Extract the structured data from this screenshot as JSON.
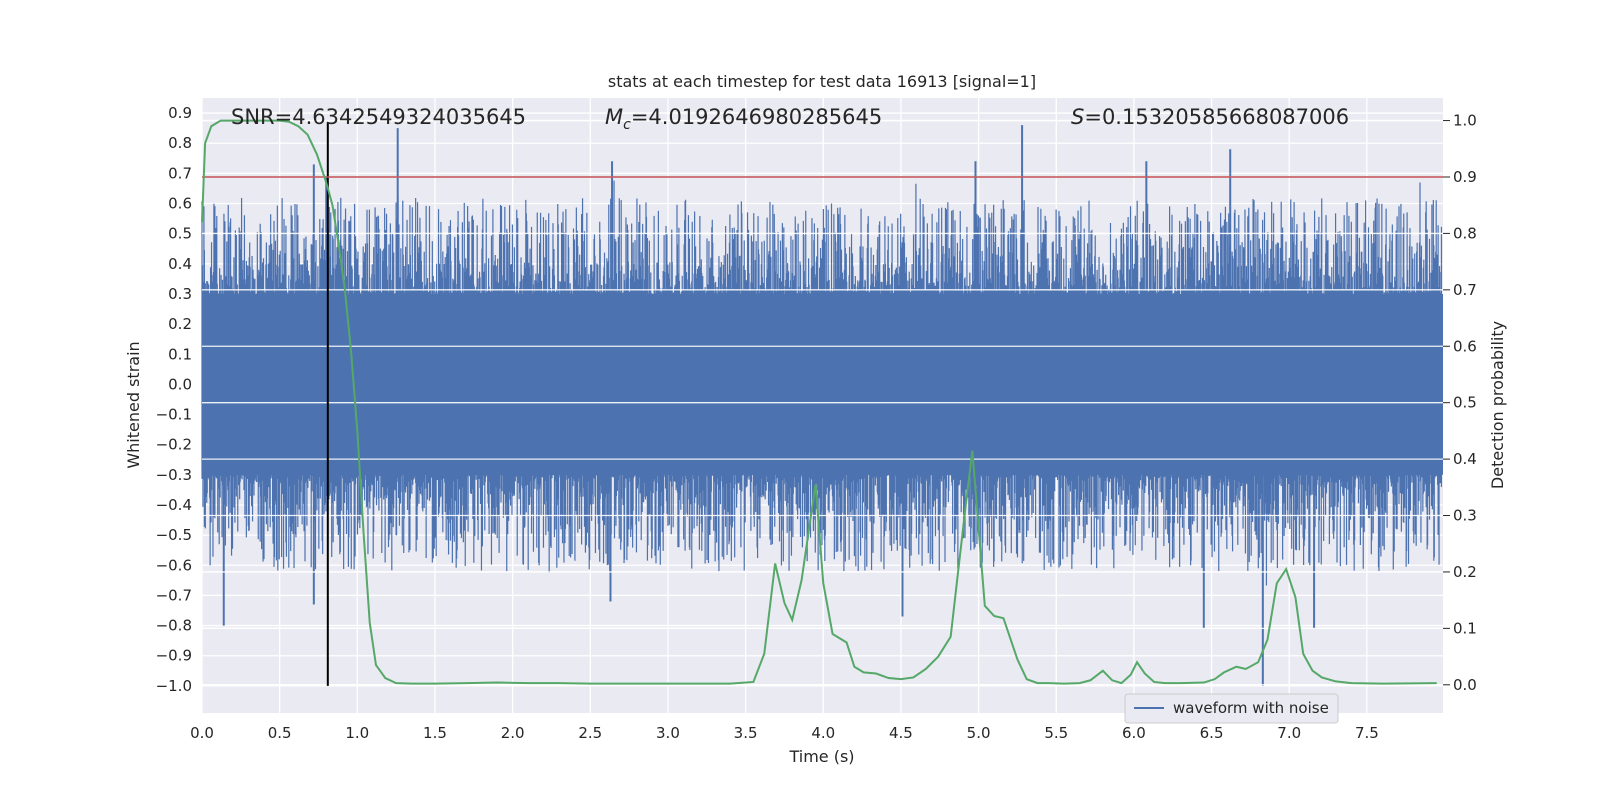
{
  "chart_data": {
    "type": "line",
    "title": "stats at each timestep for test data 16913 [signal=1]",
    "xlabel": "Time (s)",
    "ylabel_left": "Whitened strain",
    "ylabel_right": "Detection probability",
    "xlim": [
      0.0,
      7.99
    ],
    "ylim_left": [
      -1.09,
      0.95
    ],
    "ylim_right": [
      -0.05,
      1.04
    ],
    "x_ticks": [
      "0.0",
      "0.5",
      "1.0",
      "1.5",
      "2.0",
      "2.5",
      "3.0",
      "3.5",
      "4.0",
      "4.5",
      "5.0",
      "5.5",
      "6.0",
      "6.5",
      "7.0",
      "7.5"
    ],
    "y_left_ticks": [
      "0.9",
      "0.8",
      "0.7",
      "0.6",
      "0.5",
      "0.4",
      "0.3",
      "0.2",
      "0.1",
      "0.0",
      "-0.1",
      "-0.2",
      "-0.3",
      "-0.4",
      "-0.5",
      "-0.6",
      "-0.7",
      "-0.8",
      "-0.9",
      "-1.0"
    ],
    "y_right_ticks": [
      "1.0",
      "0.9",
      "0.8",
      "0.7",
      "0.6",
      "0.5",
      "0.4",
      "0.3",
      "0.2",
      "0.1",
      "0.0"
    ],
    "grid": true,
    "legend_position": "bottom-right",
    "annotations": {
      "snr": "SNR=4.6342549324035645",
      "mc_symbol": "M",
      "mc_sub": "c",
      "mc_value": "=4.0192646980285645",
      "s_symbol": "S",
      "s_value": "=0.15320585668087006"
    },
    "series": [
      {
        "name": "waveform with noise",
        "axis": "left",
        "color": "#4c72b0",
        "description_values": "dense noisy strain signal, core band roughly -0.3 to 0.3, spikes to about 0.85 and -1.0",
        "peaks": [
          {
            "x": 0.72,
            "y": 0.73
          },
          {
            "x": 0.8,
            "y": 0.69
          },
          {
            "x": 1.26,
            "y": 0.85
          },
          {
            "x": 2.64,
            "y": 0.74
          },
          {
            "x": 4.98,
            "y": 0.74
          },
          {
            "x": 5.28,
            "y": 0.86
          },
          {
            "x": 6.08,
            "y": 0.74
          },
          {
            "x": 6.62,
            "y": 0.78
          },
          {
            "x": 0.14,
            "y": -0.8
          },
          {
            "x": 0.72,
            "y": -0.73
          },
          {
            "x": 2.63,
            "y": -0.72
          },
          {
            "x": 4.51,
            "y": -0.77
          },
          {
            "x": 6.45,
            "y": -0.81
          },
          {
            "x": 6.83,
            "y": -1.0
          },
          {
            "x": 7.16,
            "y": -0.81
          }
        ]
      },
      {
        "name": "",
        "axis": "right",
        "color": "#55a868",
        "x": [
          0.0,
          0.02,
          0.06,
          0.12,
          0.2,
          0.3,
          0.4,
          0.5,
          0.56,
          0.62,
          0.68,
          0.74,
          0.8,
          0.84,
          0.88,
          0.92,
          0.96,
          1.0,
          1.04,
          1.08,
          1.12,
          1.18,
          1.25,
          1.35,
          1.5,
          1.7,
          1.9,
          2.1,
          2.3,
          2.5,
          2.8,
          3.1,
          3.4,
          3.55,
          3.62,
          3.69,
          3.75,
          3.8,
          3.86,
          3.95,
          4.0,
          4.06,
          4.15,
          4.2,
          4.26,
          4.34,
          4.42,
          4.5,
          4.58,
          4.66,
          4.74,
          4.82,
          4.92,
          4.96,
          5.04,
          5.1,
          5.16,
          5.25,
          5.31,
          5.38,
          5.45,
          5.55,
          5.65,
          5.72,
          5.8,
          5.86,
          5.92,
          5.98,
          6.02,
          6.07,
          6.13,
          6.2,
          6.3,
          6.45,
          6.52,
          6.58,
          6.66,
          6.72,
          6.8,
          6.86,
          6.92,
          6.98,
          7.04,
          7.09,
          7.15,
          7.21,
          7.3,
          7.4,
          7.6,
          7.95
        ],
        "values": [
          0.82,
          0.96,
          0.99,
          1.0,
          1.0,
          1.0,
          1.0,
          1.0,
          0.998,
          0.99,
          0.975,
          0.94,
          0.89,
          0.85,
          0.78,
          0.7,
          0.59,
          0.45,
          0.27,
          0.11,
          0.035,
          0.012,
          0.003,
          0.002,
          0.002,
          0.003,
          0.004,
          0.003,
          0.003,
          0.002,
          0.002,
          0.002,
          0.002,
          0.005,
          0.055,
          0.215,
          0.145,
          0.115,
          0.185,
          0.355,
          0.18,
          0.09,
          0.075,
          0.032,
          0.022,
          0.02,
          0.012,
          0.01,
          0.013,
          0.028,
          0.05,
          0.085,
          0.325,
          0.415,
          0.14,
          0.122,
          0.118,
          0.045,
          0.01,
          0.003,
          0.003,
          0.002,
          0.003,
          0.008,
          0.025,
          0.008,
          0.003,
          0.018,
          0.04,
          0.02,
          0.005,
          0.003,
          0.003,
          0.004,
          0.01,
          0.022,
          0.032,
          0.028,
          0.04,
          0.08,
          0.18,
          0.205,
          0.155,
          0.055,
          0.025,
          0.013,
          0.006,
          0.003,
          0.002,
          0.003
        ]
      }
    ],
    "threshold_line": {
      "axis": "right",
      "value": 0.9,
      "color": "#c44e52"
    },
    "marker_line": {
      "x": 0.81,
      "y_from": -1.0,
      "y_to": 0.87,
      "color": "#000000"
    }
  }
}
